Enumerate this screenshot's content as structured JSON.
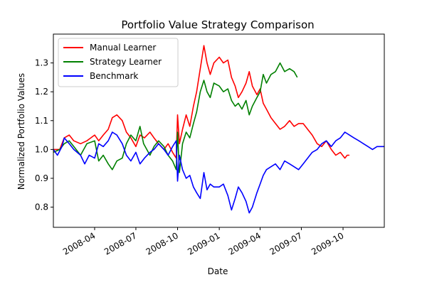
{
  "chart_data": {
    "type": "line",
    "title": "Portfolio Value Strategy Comparison",
    "xlabel": "Date",
    "ylabel": "Normalized Portfolio Values",
    "xlim": [
      "2008-01-01",
      "2009-12-31"
    ],
    "ylim": [
      0.73,
      1.4
    ],
    "x_ticks": [
      "2008-04",
      "2008-07",
      "2008-10",
      "2009-01",
      "2009-04",
      "2009-07",
      "2009-10"
    ],
    "x_tick_dates": [
      "2008-04-01",
      "2008-07-01",
      "2008-10-01",
      "2009-01-01",
      "2009-04-01",
      "2009-07-01",
      "2009-10-01"
    ],
    "y_ticks": [
      0.8,
      0.9,
      1.0,
      1.1,
      1.2,
      1.3
    ],
    "y_tick_labels": [
      "0.8",
      "0.9",
      "1.0",
      "1.1",
      "1.2",
      "1.3"
    ],
    "grid": false,
    "legend_position": "top-left",
    "series": [
      {
        "name": "Manual Learner",
        "color": "#ff0000",
        "points": [
          [
            "2008-01-01",
            1.0
          ],
          [
            "2008-01-15",
            1.0
          ],
          [
            "2008-01-25",
            1.04
          ],
          [
            "2008-02-05",
            1.05
          ],
          [
            "2008-02-15",
            1.03
          ],
          [
            "2008-03-01",
            1.02
          ],
          [
            "2008-03-15",
            1.03
          ],
          [
            "2008-04-01",
            1.05
          ],
          [
            "2008-04-10",
            1.03
          ],
          [
            "2008-04-20",
            1.05
          ],
          [
            "2008-05-01",
            1.07
          ],
          [
            "2008-05-10",
            1.11
          ],
          [
            "2008-05-20",
            1.12
          ],
          [
            "2008-06-01",
            1.1
          ],
          [
            "2008-06-10",
            1.06
          ],
          [
            "2008-06-20",
            1.04
          ],
          [
            "2008-07-01",
            1.01
          ],
          [
            "2008-07-10",
            1.05
          ],
          [
            "2008-07-20",
            1.04
          ],
          [
            "2008-08-01",
            1.06
          ],
          [
            "2008-08-10",
            1.04
          ],
          [
            "2008-08-20",
            1.02
          ],
          [
            "2008-09-01",
            1.0
          ],
          [
            "2008-09-10",
            1.02
          ],
          [
            "2008-09-20",
            0.99
          ],
          [
            "2008-09-28",
            0.97
          ],
          [
            "2008-10-01",
            1.12
          ],
          [
            "2008-10-05",
            1.02
          ],
          [
            "2008-10-12",
            1.07
          ],
          [
            "2008-10-20",
            1.12
          ],
          [
            "2008-10-28",
            1.08
          ],
          [
            "2008-11-05",
            1.15
          ],
          [
            "2008-11-12",
            1.2
          ],
          [
            "2008-11-20",
            1.28
          ],
          [
            "2008-11-28",
            1.36
          ],
          [
            "2008-12-05",
            1.3
          ],
          [
            "2008-12-12",
            1.26
          ],
          [
            "2008-12-20",
            1.3
          ],
          [
            "2009-01-01",
            1.32
          ],
          [
            "2009-01-10",
            1.3
          ],
          [
            "2009-01-20",
            1.31
          ],
          [
            "2009-01-28",
            1.25
          ],
          [
            "2009-02-05",
            1.22
          ],
          [
            "2009-02-12",
            1.18
          ],
          [
            "2009-02-20",
            1.2
          ],
          [
            "2009-03-01",
            1.23
          ],
          [
            "2009-03-08",
            1.27
          ],
          [
            "2009-03-15",
            1.22
          ],
          [
            "2009-03-25",
            1.19
          ],
          [
            "2009-04-01",
            1.21
          ],
          [
            "2009-04-08",
            1.16
          ],
          [
            "2009-04-15",
            1.14
          ],
          [
            "2009-04-25",
            1.11
          ],
          [
            "2009-05-05",
            1.09
          ],
          [
            "2009-05-15",
            1.07
          ],
          [
            "2009-05-25",
            1.08
          ],
          [
            "2009-06-05",
            1.1
          ],
          [
            "2009-06-15",
            1.08
          ],
          [
            "2009-06-25",
            1.09
          ],
          [
            "2009-07-05",
            1.09
          ],
          [
            "2009-07-15",
            1.07
          ],
          [
            "2009-07-25",
            1.05
          ],
          [
            "2009-08-05",
            1.02
          ],
          [
            "2009-08-15",
            1.01
          ],
          [
            "2009-08-25",
            1.03
          ],
          [
            "2009-09-05",
            1.0
          ],
          [
            "2009-09-15",
            0.98
          ],
          [
            "2009-09-25",
            0.99
          ],
          [
            "2009-10-05",
            0.97
          ],
          [
            "2009-10-10",
            0.98
          ],
          [
            "2009-10-15",
            0.98
          ]
        ]
      },
      {
        "name": "Strategy Learner",
        "color": "#008000",
        "points": [
          [
            "2008-01-01",
            0.99
          ],
          [
            "2008-01-15",
            1.0
          ],
          [
            "2008-01-25",
            1.02
          ],
          [
            "2008-02-05",
            1.03
          ],
          [
            "2008-02-15",
            1.01
          ],
          [
            "2008-03-01",
            0.98
          ],
          [
            "2008-03-15",
            1.02
          ],
          [
            "2008-04-01",
            1.03
          ],
          [
            "2008-04-10",
            0.96
          ],
          [
            "2008-04-20",
            0.98
          ],
          [
            "2008-05-01",
            0.95
          ],
          [
            "2008-05-10",
            0.93
          ],
          [
            "2008-05-20",
            0.96
          ],
          [
            "2008-06-01",
            0.97
          ],
          [
            "2008-06-10",
            1.02
          ],
          [
            "2008-06-20",
            1.05
          ],
          [
            "2008-07-01",
            1.03
          ],
          [
            "2008-07-10",
            1.08
          ],
          [
            "2008-07-18",
            1.02
          ],
          [
            "2008-08-01",
            0.98
          ],
          [
            "2008-08-10",
            1.01
          ],
          [
            "2008-08-20",
            1.03
          ],
          [
            "2008-09-01",
            1.01
          ],
          [
            "2008-09-10",
            0.98
          ],
          [
            "2008-09-20",
            0.96
          ],
          [
            "2008-09-28",
            0.93
          ],
          [
            "2008-10-01",
            1.06
          ],
          [
            "2008-10-05",
            0.92
          ],
          [
            "2008-10-12",
            1.02
          ],
          [
            "2008-10-20",
            1.06
          ],
          [
            "2008-10-28",
            1.04
          ],
          [
            "2008-11-05",
            1.09
          ],
          [
            "2008-11-12",
            1.13
          ],
          [
            "2008-11-20",
            1.2
          ],
          [
            "2008-11-28",
            1.24
          ],
          [
            "2008-12-05",
            1.2
          ],
          [
            "2008-12-12",
            1.18
          ],
          [
            "2008-12-20",
            1.23
          ],
          [
            "2009-01-01",
            1.22
          ],
          [
            "2009-01-10",
            1.2
          ],
          [
            "2009-01-20",
            1.21
          ],
          [
            "2009-01-28",
            1.17
          ],
          [
            "2009-02-05",
            1.15
          ],
          [
            "2009-02-12",
            1.16
          ],
          [
            "2009-02-20",
            1.14
          ],
          [
            "2009-03-01",
            1.17
          ],
          [
            "2009-03-08",
            1.12
          ],
          [
            "2009-03-15",
            1.15
          ],
          [
            "2009-03-25",
            1.18
          ],
          [
            "2009-04-01",
            1.2
          ],
          [
            "2009-04-08",
            1.26
          ],
          [
            "2009-04-15",
            1.23
          ],
          [
            "2009-04-25",
            1.26
          ],
          [
            "2009-05-05",
            1.27
          ],
          [
            "2009-05-15",
            1.3
          ],
          [
            "2009-05-25",
            1.27
          ],
          [
            "2009-06-05",
            1.28
          ],
          [
            "2009-06-15",
            1.27
          ],
          [
            "2009-06-22",
            1.25
          ]
        ]
      },
      {
        "name": "Benchmark",
        "color": "#0000ff",
        "points": [
          [
            "2008-01-01",
            1.0
          ],
          [
            "2008-01-10",
            0.98
          ],
          [
            "2008-01-20",
            1.01
          ],
          [
            "2008-01-25",
            1.04
          ],
          [
            "2008-02-05",
            1.02
          ],
          [
            "2008-02-15",
            1.0
          ],
          [
            "2008-03-01",
            0.98
          ],
          [
            "2008-03-10",
            0.95
          ],
          [
            "2008-03-20",
            0.98
          ],
          [
            "2008-04-01",
            0.97
          ],
          [
            "2008-04-10",
            1.02
          ],
          [
            "2008-04-20",
            1.01
          ],
          [
            "2008-05-01",
            1.03
          ],
          [
            "2008-05-10",
            1.06
          ],
          [
            "2008-05-20",
            1.05
          ],
          [
            "2008-06-01",
            1.02
          ],
          [
            "2008-06-10",
            0.98
          ],
          [
            "2008-06-20",
            0.96
          ],
          [
            "2008-07-01",
            0.99
          ],
          [
            "2008-07-10",
            0.95
          ],
          [
            "2008-07-20",
            0.97
          ],
          [
            "2008-08-01",
            0.99
          ],
          [
            "2008-08-10",
            1.0
          ],
          [
            "2008-08-20",
            1.02
          ],
          [
            "2008-09-01",
            1.0
          ],
          [
            "2008-09-10",
            0.98
          ],
          [
            "2008-09-20",
            1.01
          ],
          [
            "2008-09-28",
            1.03
          ],
          [
            "2008-10-01",
            0.89
          ],
          [
            "2008-10-05",
            0.98
          ],
          [
            "2008-10-12",
            0.93
          ],
          [
            "2008-10-20",
            0.9
          ],
          [
            "2008-10-28",
            0.91
          ],
          [
            "2008-11-05",
            0.87
          ],
          [
            "2008-11-12",
            0.85
          ],
          [
            "2008-11-20",
            0.83
          ],
          [
            "2008-11-28",
            0.92
          ],
          [
            "2008-12-05",
            0.86
          ],
          [
            "2008-12-12",
            0.88
          ],
          [
            "2008-12-20",
            0.87
          ],
          [
            "2009-01-01",
            0.87
          ],
          [
            "2009-01-10",
            0.88
          ],
          [
            "2009-01-20",
            0.84
          ],
          [
            "2009-01-28",
            0.79
          ],
          [
            "2009-02-05",
            0.83
          ],
          [
            "2009-02-12",
            0.87
          ],
          [
            "2009-02-20",
            0.85
          ],
          [
            "2009-03-01",
            0.82
          ],
          [
            "2009-03-08",
            0.78
          ],
          [
            "2009-03-15",
            0.8
          ],
          [
            "2009-03-25",
            0.85
          ],
          [
            "2009-04-01",
            0.88
          ],
          [
            "2009-04-08",
            0.91
          ],
          [
            "2009-04-15",
            0.93
          ],
          [
            "2009-04-25",
            0.94
          ],
          [
            "2009-05-05",
            0.95
          ],
          [
            "2009-05-15",
            0.93
          ],
          [
            "2009-05-25",
            0.96
          ],
          [
            "2009-06-05",
            0.95
          ],
          [
            "2009-06-15",
            0.94
          ],
          [
            "2009-06-25",
            0.93
          ],
          [
            "2009-07-05",
            0.95
          ],
          [
            "2009-07-15",
            0.97
          ],
          [
            "2009-07-25",
            0.99
          ],
          [
            "2009-08-05",
            1.0
          ],
          [
            "2009-08-15",
            1.02
          ],
          [
            "2009-08-25",
            1.03
          ],
          [
            "2009-09-05",
            1.01
          ],
          [
            "2009-09-15",
            1.03
          ],
          [
            "2009-09-25",
            1.04
          ],
          [
            "2009-10-05",
            1.06
          ],
          [
            "2009-10-15",
            1.05
          ],
          [
            "2009-10-25",
            1.04
          ],
          [
            "2009-11-05",
            1.03
          ],
          [
            "2009-11-15",
            1.02
          ],
          [
            "2009-11-25",
            1.01
          ],
          [
            "2009-12-05",
            1.0
          ],
          [
            "2009-12-15",
            1.01
          ],
          [
            "2009-12-31",
            1.01
          ]
        ]
      }
    ]
  }
}
